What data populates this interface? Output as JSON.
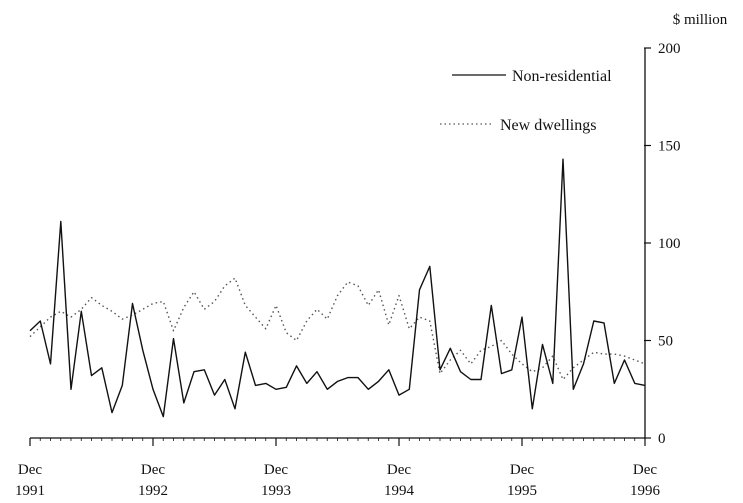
{
  "chart_data": {
    "type": "line",
    "title": "",
    "xlabel": "",
    "ylabel": "$ million",
    "ylim": [
      0,
      200
    ],
    "y_ticks": [
      0,
      50,
      100,
      150,
      200
    ],
    "y_axis_side": "right",
    "grid": false,
    "legend_position": "top-right",
    "x_range": [
      "1991-12",
      "1996-12"
    ],
    "x_tick_labels": [
      {
        "date": "1991-12",
        "line1": "Dec",
        "line2": "1991"
      },
      {
        "date": "1992-12",
        "line1": "Dec",
        "line2": "1992"
      },
      {
        "date": "1993-12",
        "line1": "Dec",
        "line2": "1993"
      },
      {
        "date": "1994-12",
        "line1": "Dec",
        "line2": "1994"
      },
      {
        "date": "1995-12",
        "line1": "Dec",
        "line2": "1995"
      },
      {
        "date": "1996-12",
        "line1": "Dec",
        "line2": "1996"
      }
    ],
    "x": [
      "1991-12",
      "1992-01",
      "1992-02",
      "1992-03",
      "1992-04",
      "1992-05",
      "1992-06",
      "1992-07",
      "1992-08",
      "1992-09",
      "1992-10",
      "1992-11",
      "1992-12",
      "1993-01",
      "1993-02",
      "1993-03",
      "1993-04",
      "1993-05",
      "1993-06",
      "1993-07",
      "1993-08",
      "1993-09",
      "1993-10",
      "1993-11",
      "1993-12",
      "1994-01",
      "1994-02",
      "1994-03",
      "1994-04",
      "1994-05",
      "1994-06",
      "1994-07",
      "1994-08",
      "1994-09",
      "1994-10",
      "1994-11",
      "1994-12",
      "1995-01",
      "1995-02",
      "1995-03",
      "1995-04",
      "1995-05",
      "1995-06",
      "1995-07",
      "1995-08",
      "1995-09",
      "1995-10",
      "1995-11",
      "1995-12",
      "1996-01",
      "1996-02",
      "1996-03",
      "1996-04",
      "1996-05",
      "1996-06",
      "1996-07",
      "1996-08",
      "1996-09",
      "1996-10",
      "1996-11",
      "1996-12"
    ],
    "series": [
      {
        "name": "Non-residential",
        "style": "solid",
        "color": "#111111",
        "values": [
          55,
          60,
          38,
          111,
          25,
          65,
          32,
          36,
          13,
          27,
          69,
          45,
          25,
          11,
          51,
          18,
          34,
          35,
          22,
          30,
          15,
          44,
          27,
          28,
          25,
          26,
          37,
          28,
          34,
          25,
          29,
          31,
          31,
          25,
          29,
          35,
          22,
          25,
          76,
          88,
          35,
          46,
          34,
          30,
          30,
          68,
          33,
          35,
          62,
          15,
          48,
          28,
          143,
          25,
          38,
          60,
          59,
          28,
          40,
          28,
          27
        ]
      },
      {
        "name": "New dwellings",
        "style": "dotted",
        "color": "#555555",
        "values": [
          52,
          57,
          62,
          65,
          62,
          66,
          72,
          68,
          65,
          61,
          63,
          66,
          69,
          70,
          55,
          67,
          75,
          66,
          70,
          78,
          82,
          68,
          62,
          56,
          68,
          54,
          50,
          60,
          66,
          61,
          73,
          80,
          78,
          68,
          76,
          58,
          73,
          56,
          62,
          60,
          33,
          40,
          45,
          38,
          45,
          47,
          50,
          43,
          38,
          34,
          36,
          42,
          30,
          36,
          40,
          44,
          43,
          43,
          42,
          40,
          38
        ]
      }
    ]
  }
}
